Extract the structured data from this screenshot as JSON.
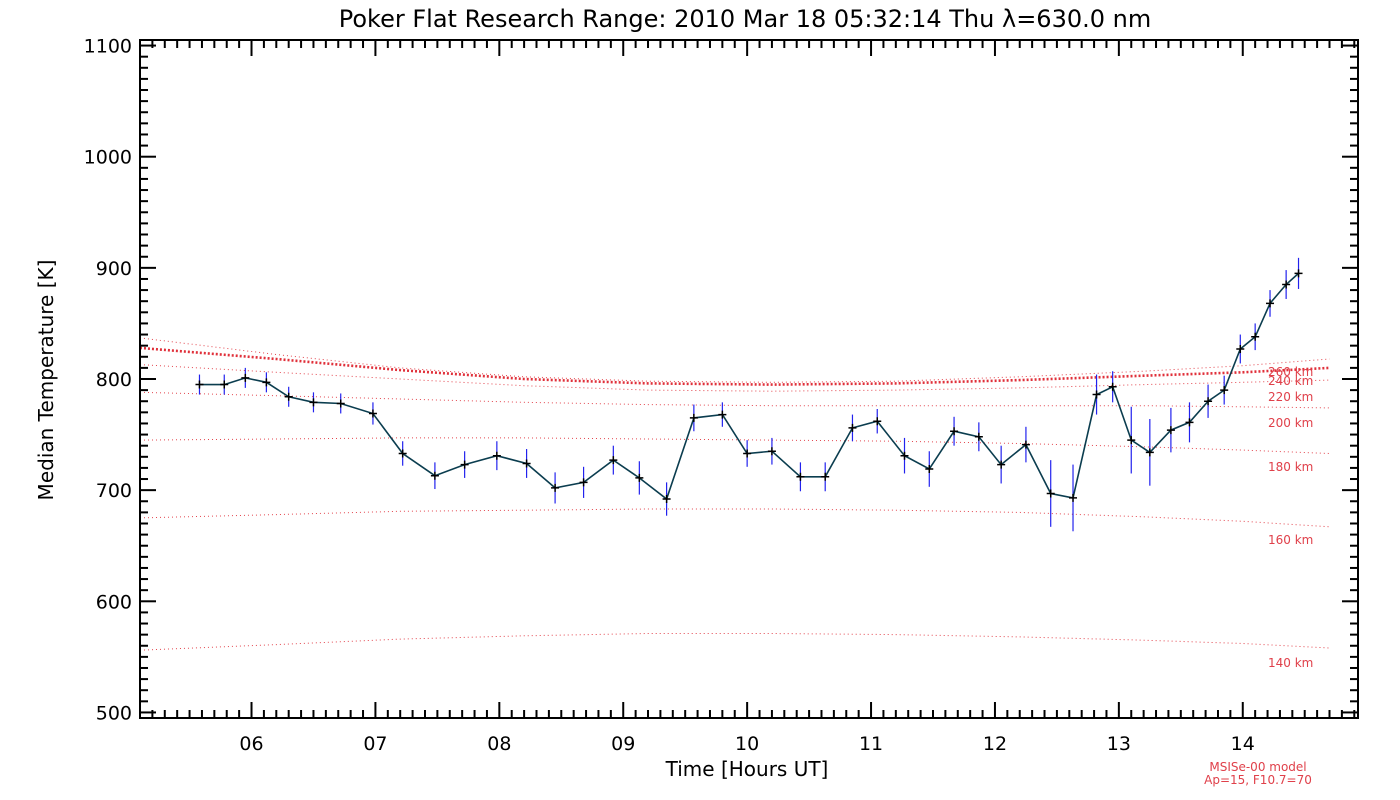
{
  "chart_data": {
    "type": "line",
    "title": "Poker Flat Research Range: 2010 Mar 18 05:32:14 Thu λ=630.0 nm",
    "xlabel": "Time [Hours UT]",
    "ylabel": "Median Temperature [K]",
    "xlim": [
      5.1,
      14.93
    ],
    "ylim": [
      495,
      1105
    ],
    "x_ticks": [
      6,
      7,
      8,
      9,
      10,
      11,
      12,
      13,
      14
    ],
    "x_tick_labels": [
      "06",
      "07",
      "08",
      "09",
      "10",
      "11",
      "12",
      "13",
      "14"
    ],
    "y_ticks": [
      500,
      600,
      700,
      800,
      900,
      1000,
      1100
    ],
    "y_tick_labels": [
      "500",
      "600",
      "700",
      "800",
      "900",
      "1000",
      "1100"
    ],
    "grid": false,
    "colors": {
      "measured": "#0b3d4f",
      "error_bar": "#2222ee",
      "marker": "#000000",
      "model": "#e0303a"
    },
    "series": [
      {
        "kind": "measured",
        "x": [
          5.58,
          5.78,
          5.95,
          6.12,
          6.3,
          6.5,
          6.72,
          6.98,
          7.22,
          7.48,
          7.72,
          7.98,
          8.22,
          8.45,
          8.68,
          8.92,
          9.13,
          9.35,
          9.57,
          9.8,
          10.0,
          10.2,
          10.43,
          10.63,
          10.85,
          11.05,
          11.27,
          11.47,
          11.67,
          11.87,
          12.05,
          12.25,
          12.45,
          12.63,
          12.82,
          12.95,
          13.1,
          13.25,
          13.42,
          13.57,
          13.72,
          13.85,
          13.98,
          14.1,
          14.22,
          14.35,
          14.45
        ],
        "y": [
          795,
          795,
          801,
          797,
          784,
          779,
          778,
          769,
          733,
          713,
          723,
          731,
          724,
          702,
          707,
          727,
          711,
          692,
          765,
          768,
          733,
          735,
          712,
          712,
          756,
          762,
          731,
          719,
          753,
          748,
          723,
          741,
          697,
          693,
          786,
          793,
          745,
          734,
          754,
          761,
          780,
          790,
          827,
          838,
          868,
          885,
          895
        ],
        "y_err": [
          9,
          9,
          9,
          9,
          9,
          9,
          9,
          10,
          11,
          12,
          12,
          13,
          13,
          14,
          14,
          13,
          15,
          15,
          12,
          11,
          12,
          12,
          13,
          13,
          12,
          11,
          16,
          16,
          13,
          13,
          17,
          16,
          30,
          30,
          18,
          14,
          30,
          30,
          20,
          18,
          15,
          13,
          13,
          12,
          12,
          13,
          14
        ]
      },
      {
        "kind": "model",
        "label": "260 km",
        "x": [
          5.1,
          6.2,
          7.2,
          8.2,
          9.2,
          10.2,
          11.2,
          12.2,
          13.2,
          14.0,
          14.7
        ],
        "y": [
          837,
          822,
          810,
          802,
          798,
          797,
          798,
          802,
          807,
          812,
          818
        ]
      },
      {
        "kind": "model",
        "label": "240 km",
        "x": [
          5.1,
          6.2,
          7.2,
          8.2,
          9.2,
          10.2,
          11.2,
          12.2,
          13.2,
          14.0,
          14.7
        ],
        "y": [
          828,
          818,
          808,
          800,
          796,
          795,
          796,
          799,
          803,
          806,
          810
        ]
      },
      {
        "kind": "model",
        "label": "220 km",
        "x": [
          5.1,
          6.2,
          7.2,
          8.2,
          9.2,
          10.2,
          11.2,
          12.2,
          13.2,
          14.0,
          14.7
        ],
        "y": [
          813,
          806,
          800,
          794,
          790,
          789,
          790,
          792,
          795,
          797,
          799
        ]
      },
      {
        "kind": "model",
        "label": "200 km",
        "x": [
          5.1,
          6.2,
          7.2,
          8.2,
          9.2,
          10.2,
          11.2,
          12.2,
          13.2,
          14.0,
          14.7
        ],
        "y": [
          788,
          785,
          782,
          779,
          777,
          776,
          776,
          776,
          776,
          775,
          774
        ]
      },
      {
        "kind": "model",
        "label": "180 km",
        "x": [
          5.1,
          6.2,
          7.2,
          8.2,
          9.2,
          10.2,
          11.2,
          12.2,
          13.2,
          14.0,
          14.7
        ],
        "y": [
          745,
          746,
          747,
          747,
          746,
          745,
          744,
          742,
          739,
          736,
          733
        ]
      },
      {
        "kind": "model",
        "label": "160 km",
        "x": [
          5.1,
          6.2,
          7.2,
          8.2,
          9.2,
          10.2,
          11.2,
          12.2,
          13.2,
          14.0,
          14.7
        ],
        "y": [
          675,
          678,
          681,
          682,
          683,
          683,
          682,
          680,
          676,
          672,
          667
        ]
      },
      {
        "kind": "model",
        "label": "140 km",
        "x": [
          5.1,
          6.2,
          7.2,
          8.2,
          9.2,
          10.2,
          11.2,
          12.2,
          13.2,
          14.0,
          14.7
        ],
        "y": [
          556,
          561,
          566,
          569,
          571,
          571,
          570,
          568,
          565,
          562,
          558
        ]
      }
    ],
    "model_note": [
      "MSISe-00 model",
      "Ap=15, F10.7=70"
    ]
  }
}
